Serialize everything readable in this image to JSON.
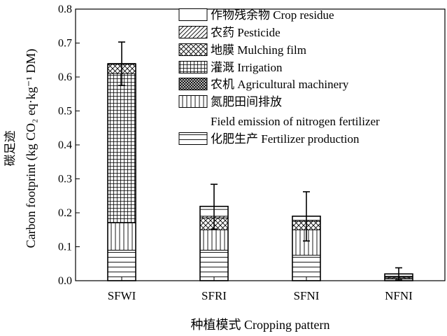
{
  "chart_data": {
    "type": "bar",
    "stacked": true,
    "categories": [
      "SFWI",
      "SFRI",
      "SFNI",
      "NFNI"
    ],
    "ylim": [
      0,
      0.8
    ],
    "yticks": [
      "0.0",
      "0.1",
      "0.2",
      "0.3",
      "0.4",
      "0.5",
      "0.6",
      "0.7",
      "0.8"
    ],
    "xlabel": "种植模式 Cropping pattern",
    "ylabel_cn": "碳足迹",
    "ylabel_en": "Carbon footprint (kg CO₂ eq·kg⁻¹ DM)",
    "legend_position": "top-right",
    "series": [
      {
        "name": "化肥生产 Fertilizer production",
        "pattern": "hlines",
        "values": [
          0.09,
          0.09,
          0.075,
          0.005
        ]
      },
      {
        "name": "氮肥田间排放 Field emission of nitrogen fertilizer",
        "pattern": "vlines",
        "values": [
          0.08,
          0.06,
          0.075,
          0.003
        ]
      },
      {
        "name": "农机 Agricultural machinery",
        "pattern": "dense-cross",
        "values": [
          0.0,
          0.0,
          0.0,
          0.0
        ]
      },
      {
        "name": "灌溉 Irrigation",
        "pattern": "grid",
        "values": [
          0.44,
          0.0,
          0.0,
          0.0
        ]
      },
      {
        "name": "地膜 Mulching film",
        "pattern": "xhatch",
        "values": [
          0.03,
          0.035,
          0.025,
          0.003
        ]
      },
      {
        "name": "农药 Pesticide",
        "pattern": "diagonal",
        "values": [
          0.0,
          0.005,
          0.003,
          0.002
        ]
      },
      {
        "name": "作物残余物 Crop residue",
        "pattern": "blank",
        "values": [
          0.0,
          0.02,
          0.012,
          0.007
        ]
      }
    ],
    "totals": [
      0.638,
      0.219,
      0.19,
      0.02
    ],
    "error_bars": [
      {
        "upper": 0.703,
        "lower": 0.575
      },
      {
        "upper": 0.284,
        "lower": 0.152
      },
      {
        "upper": 0.262,
        "lower": 0.117
      },
      {
        "upper": 0.038,
        "lower": 0.002
      }
    ],
    "legend": [
      {
        "label": "作物残余物 Crop residue",
        "pattern": "blank"
      },
      {
        "label": "农药 Pesticide",
        "pattern": "diagonal"
      },
      {
        "label": "地膜 Mulching film",
        "pattern": "xhatch"
      },
      {
        "label": "灌溉 Irrigation",
        "pattern": "grid"
      },
      {
        "label": "农机 Agricultural machinery",
        "pattern": "dense-cross"
      },
      {
        "label": "氮肥田间排放",
        "label2": "Field emission of nitrogen fertilizer",
        "pattern": "vlines"
      },
      {
        "label": "化肥生产 Fertilizer production",
        "pattern": "hlines"
      }
    ]
  }
}
